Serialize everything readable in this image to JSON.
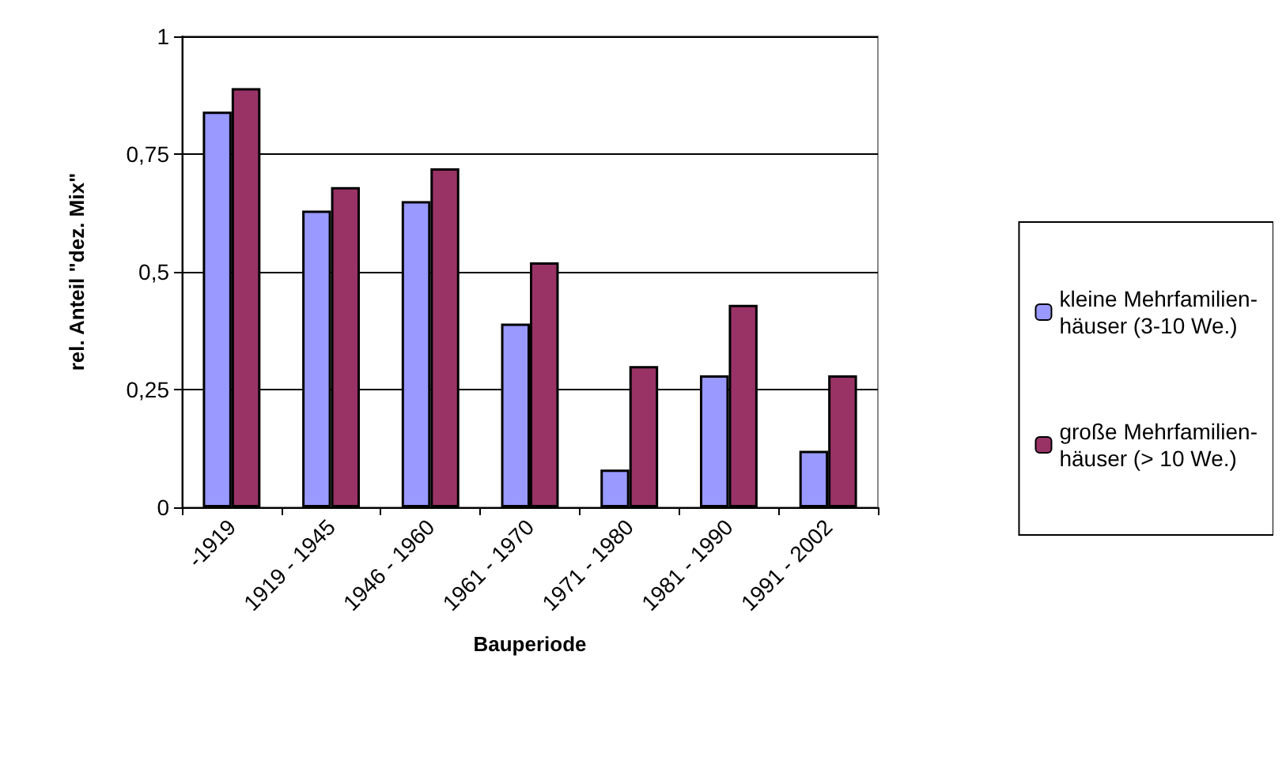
{
  "chart_data": {
    "type": "bar",
    "xlabel": "Bauperiode",
    "ylabel": "rel. Anteil \"dez. Mix\"",
    "categories": [
      "-1919",
      "1919 - 1945",
      "1946 - 1960",
      "1961 - 1970",
      "1971 - 1980",
      "1981 - 1990",
      "1991 - 2002"
    ],
    "series": [
      {
        "name": "kleine Mehrfamilien-\nhäuser (3-10 We.)",
        "color": "#9999ff",
        "values": [
          0.84,
          0.63,
          0.65,
          0.39,
          0.08,
          0.28,
          0.12
        ]
      },
      {
        "name": "große Mehrfamilien-\nhäuser (> 10 We.)",
        "color": "#993366",
        "values": [
          0.89,
          0.68,
          0.72,
          0.52,
          0.3,
          0.43,
          0.28
        ]
      }
    ],
    "ylim": [
      0,
      1
    ],
    "yticks": [
      0,
      {
        "value": 0.25,
        "label": "0,25"
      },
      {
        "value": 0.5,
        "label": "0,5"
      },
      {
        "value": 0.75,
        "label": "0,75"
      },
      1
    ],
    "grid": "y",
    "legend": "right"
  }
}
